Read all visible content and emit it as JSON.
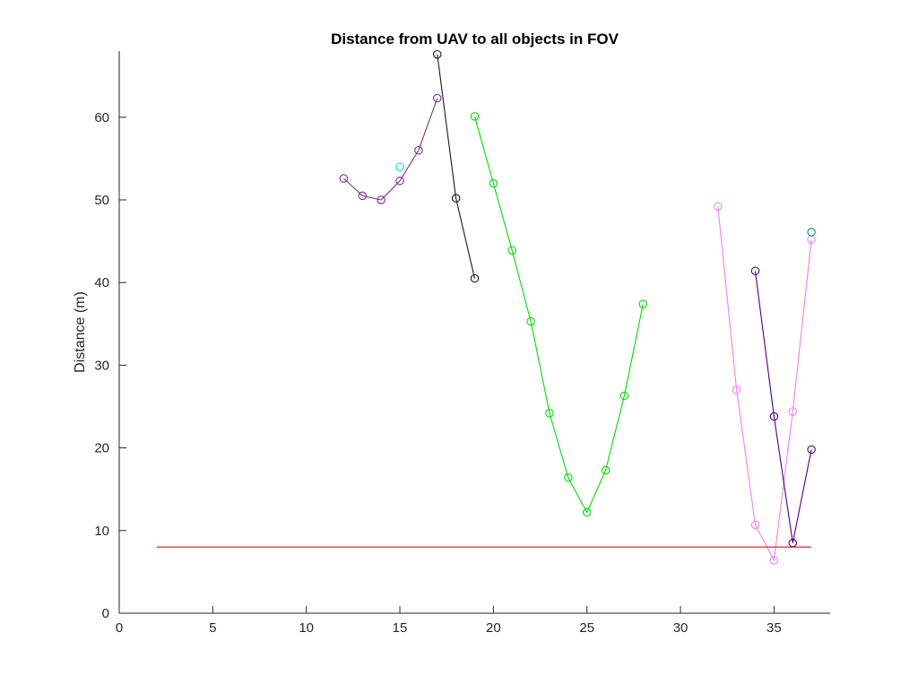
{
  "chart_data": {
    "type": "line",
    "title": "Distance from UAV to all objects in FOV",
    "xlabel": "",
    "ylabel": "Distance (m)",
    "xlim": [
      0,
      38
    ],
    "ylim": [
      0,
      68
    ],
    "xticks": [
      0,
      5,
      10,
      15,
      20,
      25,
      30,
      35
    ],
    "yticks": [
      0,
      10,
      20,
      30,
      40,
      50,
      60
    ],
    "grid": false,
    "legend": "none",
    "series": [
      {
        "color": "#7e2f8e",
        "marker": "circle",
        "points": [
          [
            12,
            52.6
          ],
          [
            13,
            50.5
          ],
          [
            14,
            50.0
          ],
          [
            15,
            52.3
          ],
          [
            16,
            56.0
          ],
          [
            17,
            62.3
          ]
        ]
      },
      {
        "color": "#1a1a1a",
        "marker": "circle",
        "points": [
          [
            17,
            67.6
          ],
          [
            18,
            50.2
          ],
          [
            19,
            40.5
          ]
        ]
      },
      {
        "color": "#00e5e5",
        "marker": "circle",
        "points": [
          [
            15,
            54.0
          ]
        ]
      },
      {
        "color": "#00dd00",
        "marker": "circle",
        "points": [
          [
            19,
            60.1
          ],
          [
            20,
            52.0
          ],
          [
            21,
            43.9
          ],
          [
            22,
            35.3
          ],
          [
            23,
            24.2
          ],
          [
            24,
            16.4
          ],
          [
            25,
            12.2
          ],
          [
            26,
            17.3
          ],
          [
            27,
            26.3
          ],
          [
            28,
            37.4
          ]
        ]
      },
      {
        "color": "#ee82ee",
        "marker": "circle",
        "points": [
          [
            32,
            49.2
          ],
          [
            33,
            27.0
          ],
          [
            34,
            10.7
          ],
          [
            35,
            6.4
          ],
          [
            36,
            24.4
          ],
          [
            37,
            45.2
          ]
        ]
      },
      {
        "color": "#4b0082",
        "marker": "circle",
        "points": [
          [
            34,
            41.4
          ],
          [
            35,
            23.8
          ],
          [
            36,
            8.5
          ],
          [
            37,
            19.8
          ]
        ]
      },
      {
        "color": "#008b8b",
        "marker": "circle",
        "points": [
          [
            37,
            46.1
          ]
        ]
      },
      {
        "color": "#ff0000",
        "marker": "none",
        "points": [
          [
            2,
            8
          ],
          [
            37,
            8
          ]
        ]
      }
    ]
  }
}
